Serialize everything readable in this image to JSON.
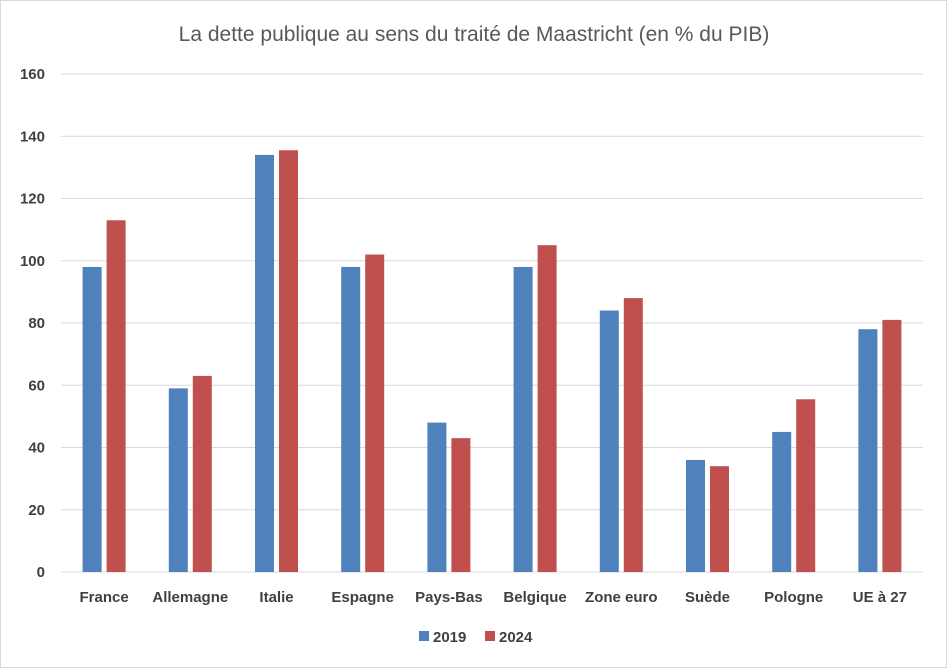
{
  "chart_data": {
    "type": "bar",
    "title": "La dette publique au sens du traité de Maastricht (en % du PIB)",
    "xlabel": "",
    "ylabel": "",
    "ylim": [
      0,
      160
    ],
    "yticks": [
      0,
      20,
      40,
      60,
      80,
      100,
      120,
      140,
      160
    ],
    "grid": true,
    "legend_position": "bottom",
    "categories": [
      "France",
      "Allemagne",
      "Italie",
      "Espagne",
      "Pays-Bas",
      "Belgique",
      "Zone euro",
      "Suède",
      "Pologne",
      "UE à 27"
    ],
    "series": [
      {
        "name": "2019",
        "color": "#4f81bd",
        "values": [
          98,
          59,
          134,
          98,
          48,
          98,
          84,
          36,
          45,
          78
        ]
      },
      {
        "name": "2024",
        "color": "#c0504d",
        "values": [
          113,
          63,
          135.5,
          102,
          43,
          105,
          88,
          34,
          55.5,
          81
        ]
      }
    ]
  }
}
